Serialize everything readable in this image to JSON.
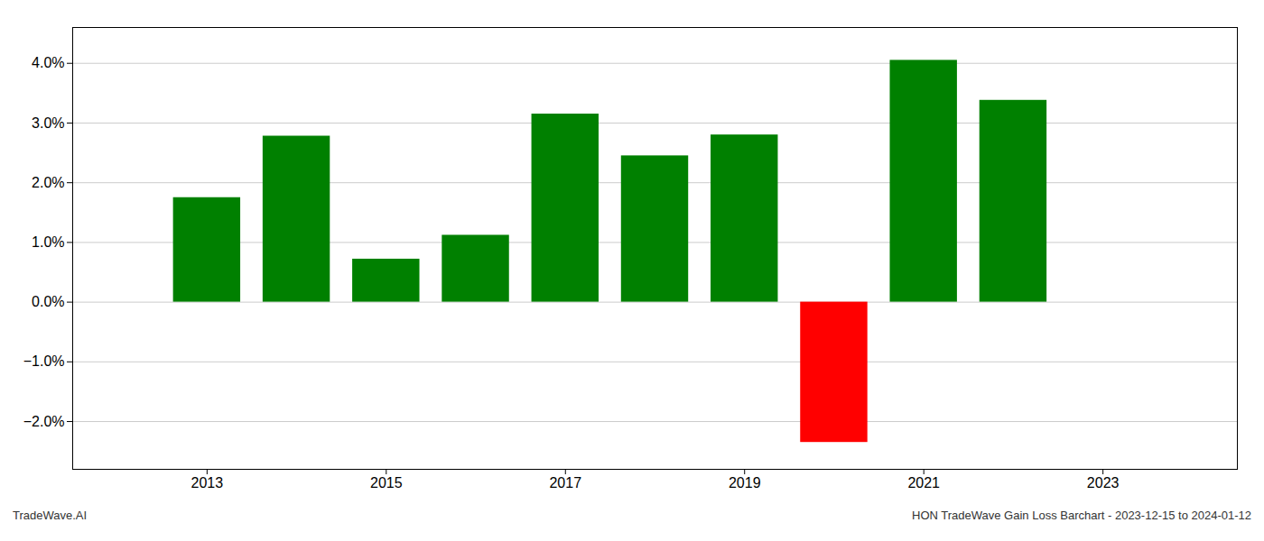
{
  "chart_data": {
    "type": "bar",
    "x": [
      2013,
      2014,
      2015,
      2016,
      2017,
      2018,
      2019,
      2020,
      2021,
      2022
    ],
    "values": [
      1.75,
      2.78,
      0.72,
      1.12,
      3.15,
      2.45,
      2.8,
      -2.35,
      4.05,
      3.38
    ],
    "colors": [
      "#008000",
      "#008000",
      "#008000",
      "#008000",
      "#008000",
      "#008000",
      "#008000",
      "#ff0000",
      "#008000",
      "#008000"
    ],
    "xlim": [
      2011.5,
      2024.5
    ],
    "xticks": [
      2013,
      2015,
      2017,
      2019,
      2021,
      2023
    ],
    "ylim": [
      -2.8,
      4.6
    ],
    "yticks": [
      {
        "value": -2.0,
        "label": "−2.0%"
      },
      {
        "value": -1.0,
        "label": "−1.0%"
      },
      {
        "value": 0.0,
        "label": "0.0%"
      },
      {
        "value": 1.0,
        "label": "1.0%"
      },
      {
        "value": 2.0,
        "label": "2.0%"
      },
      {
        "value": 3.0,
        "label": "3.0%"
      },
      {
        "value": 4.0,
        "label": "4.0%"
      }
    ],
    "grid": true,
    "annotations": [
      "TradeWave.AI",
      "HON TradeWave Gain Loss Barchart - 2023-12-15 to 2024-01-12"
    ]
  }
}
